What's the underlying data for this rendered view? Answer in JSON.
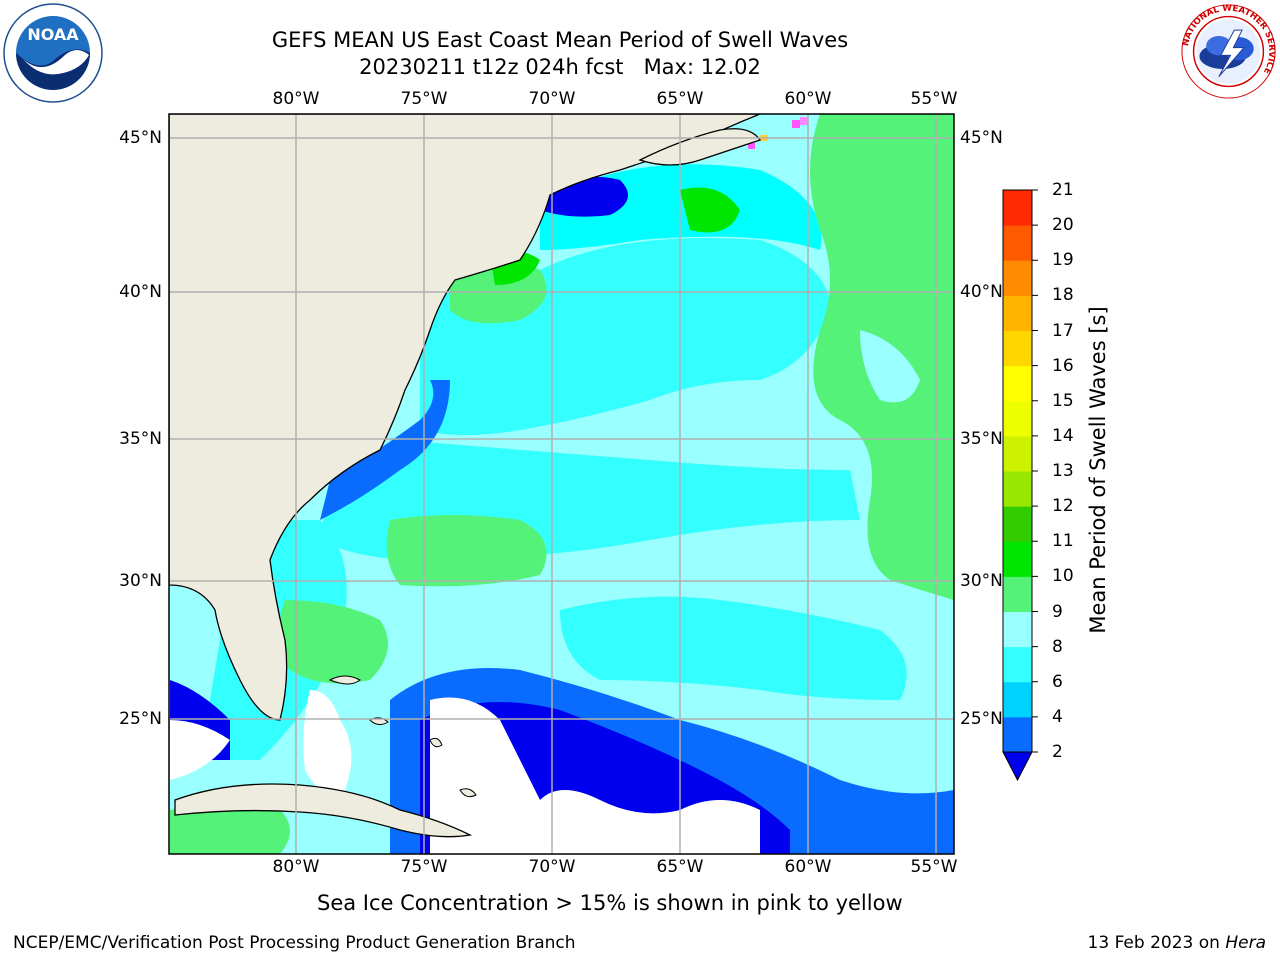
{
  "header": {
    "title_line1": "GEFS MEAN US East Coast Mean Period of Swell Waves",
    "title_line2": "20230211 t12z 024h fcst   Max: 12.02"
  },
  "logos": {
    "noaa_text": "NOAA",
    "noaa_ring_text": "NATIONAL OCEANIC AND ATMOSPHERIC ADMINISTRATION · U.S. DEPARTMENT OF COMMERCE",
    "nws_ring_text": "NATIONAL WEATHER SERVICE"
  },
  "map": {
    "lon_labels": [
      "80°W",
      "75°W",
      "70°W",
      "65°W",
      "60°W",
      "55°W"
    ],
    "lat_labels": [
      "45°N",
      "40°N",
      "35°N",
      "30°N",
      "25°N"
    ],
    "land_color": "#eeecdf",
    "no_data_color": "#ffffff"
  },
  "colorbar": {
    "title": "Mean Period of Swell Waves [s]",
    "labels": [
      "2",
      "4",
      "6",
      "8",
      "9",
      "10",
      "11",
      "12",
      "13",
      "14",
      "15",
      "16",
      "17",
      "18",
      "19",
      "20",
      "21"
    ],
    "colors": [
      "#0a6cff",
      "#00d2ff",
      "#33ffff",
      "#99ffff",
      "#55f27a",
      "#00e600",
      "#33cc00",
      "#99e600",
      "#ccf200",
      "#eeff00",
      "#ffff00",
      "#ffd700",
      "#ffb400",
      "#ff8c00",
      "#ff5a00",
      "#ff2a00",
      "#ff0000"
    ],
    "under_color": "#0000ee"
  },
  "annotation": "Sea Ice Concentration > 15% is shown in pink to yellow",
  "footer": {
    "left": "NCEP/EMC/Verification Post Processing Product Generation Branch",
    "right_date": "13 Feb 2023 on ",
    "right_host": "Hera"
  }
}
